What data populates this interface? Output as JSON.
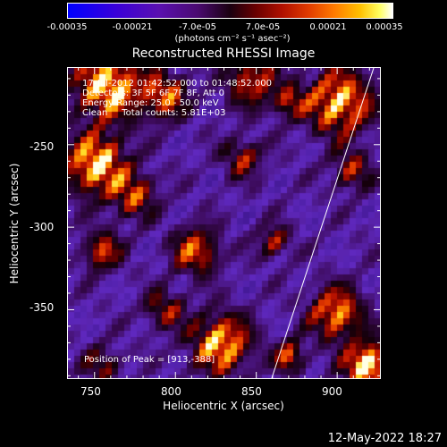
{
  "colorbar": {
    "ticks": [
      "-0.00035",
      "-0.00021",
      "-7.0e-05",
      "7.0e-05",
      "0.00021",
      "0.00035"
    ],
    "units": "(photons cm⁻² s⁻¹ asec⁻²)"
  },
  "chart_data": {
    "type": "heatmap",
    "title": "Reconstructed RHESSI Image",
    "xlabel": "Heliocentric X (arcsec)",
    "ylabel": "Heliocentric Y (arcsec)",
    "xticks": [
      "750",
      "800",
      "850",
      "900"
    ],
    "yticks": [
      "-250",
      "-300",
      "-350"
    ],
    "xlim": [
      733,
      927
    ],
    "ylim": [
      -392,
      -203
    ],
    "colorbar_range": [
      -0.00035,
      0.00035
    ],
    "annotations": {
      "time": "17-Jul-2012 01:42:52.000 to 01:48:52.000",
      "detectors": "Detectors: 3F 5F 6F 7F 8F, Att 0",
      "energy": "Energy Range: 25.0 - 50.0 keV",
      "clean": "Clean     Total counts: 5.81E+03",
      "peak": "Position of Peak = [913,-388]"
    },
    "peak": {
      "x": 913,
      "y": -388
    }
  },
  "footer": "12-May-2022 18:27"
}
